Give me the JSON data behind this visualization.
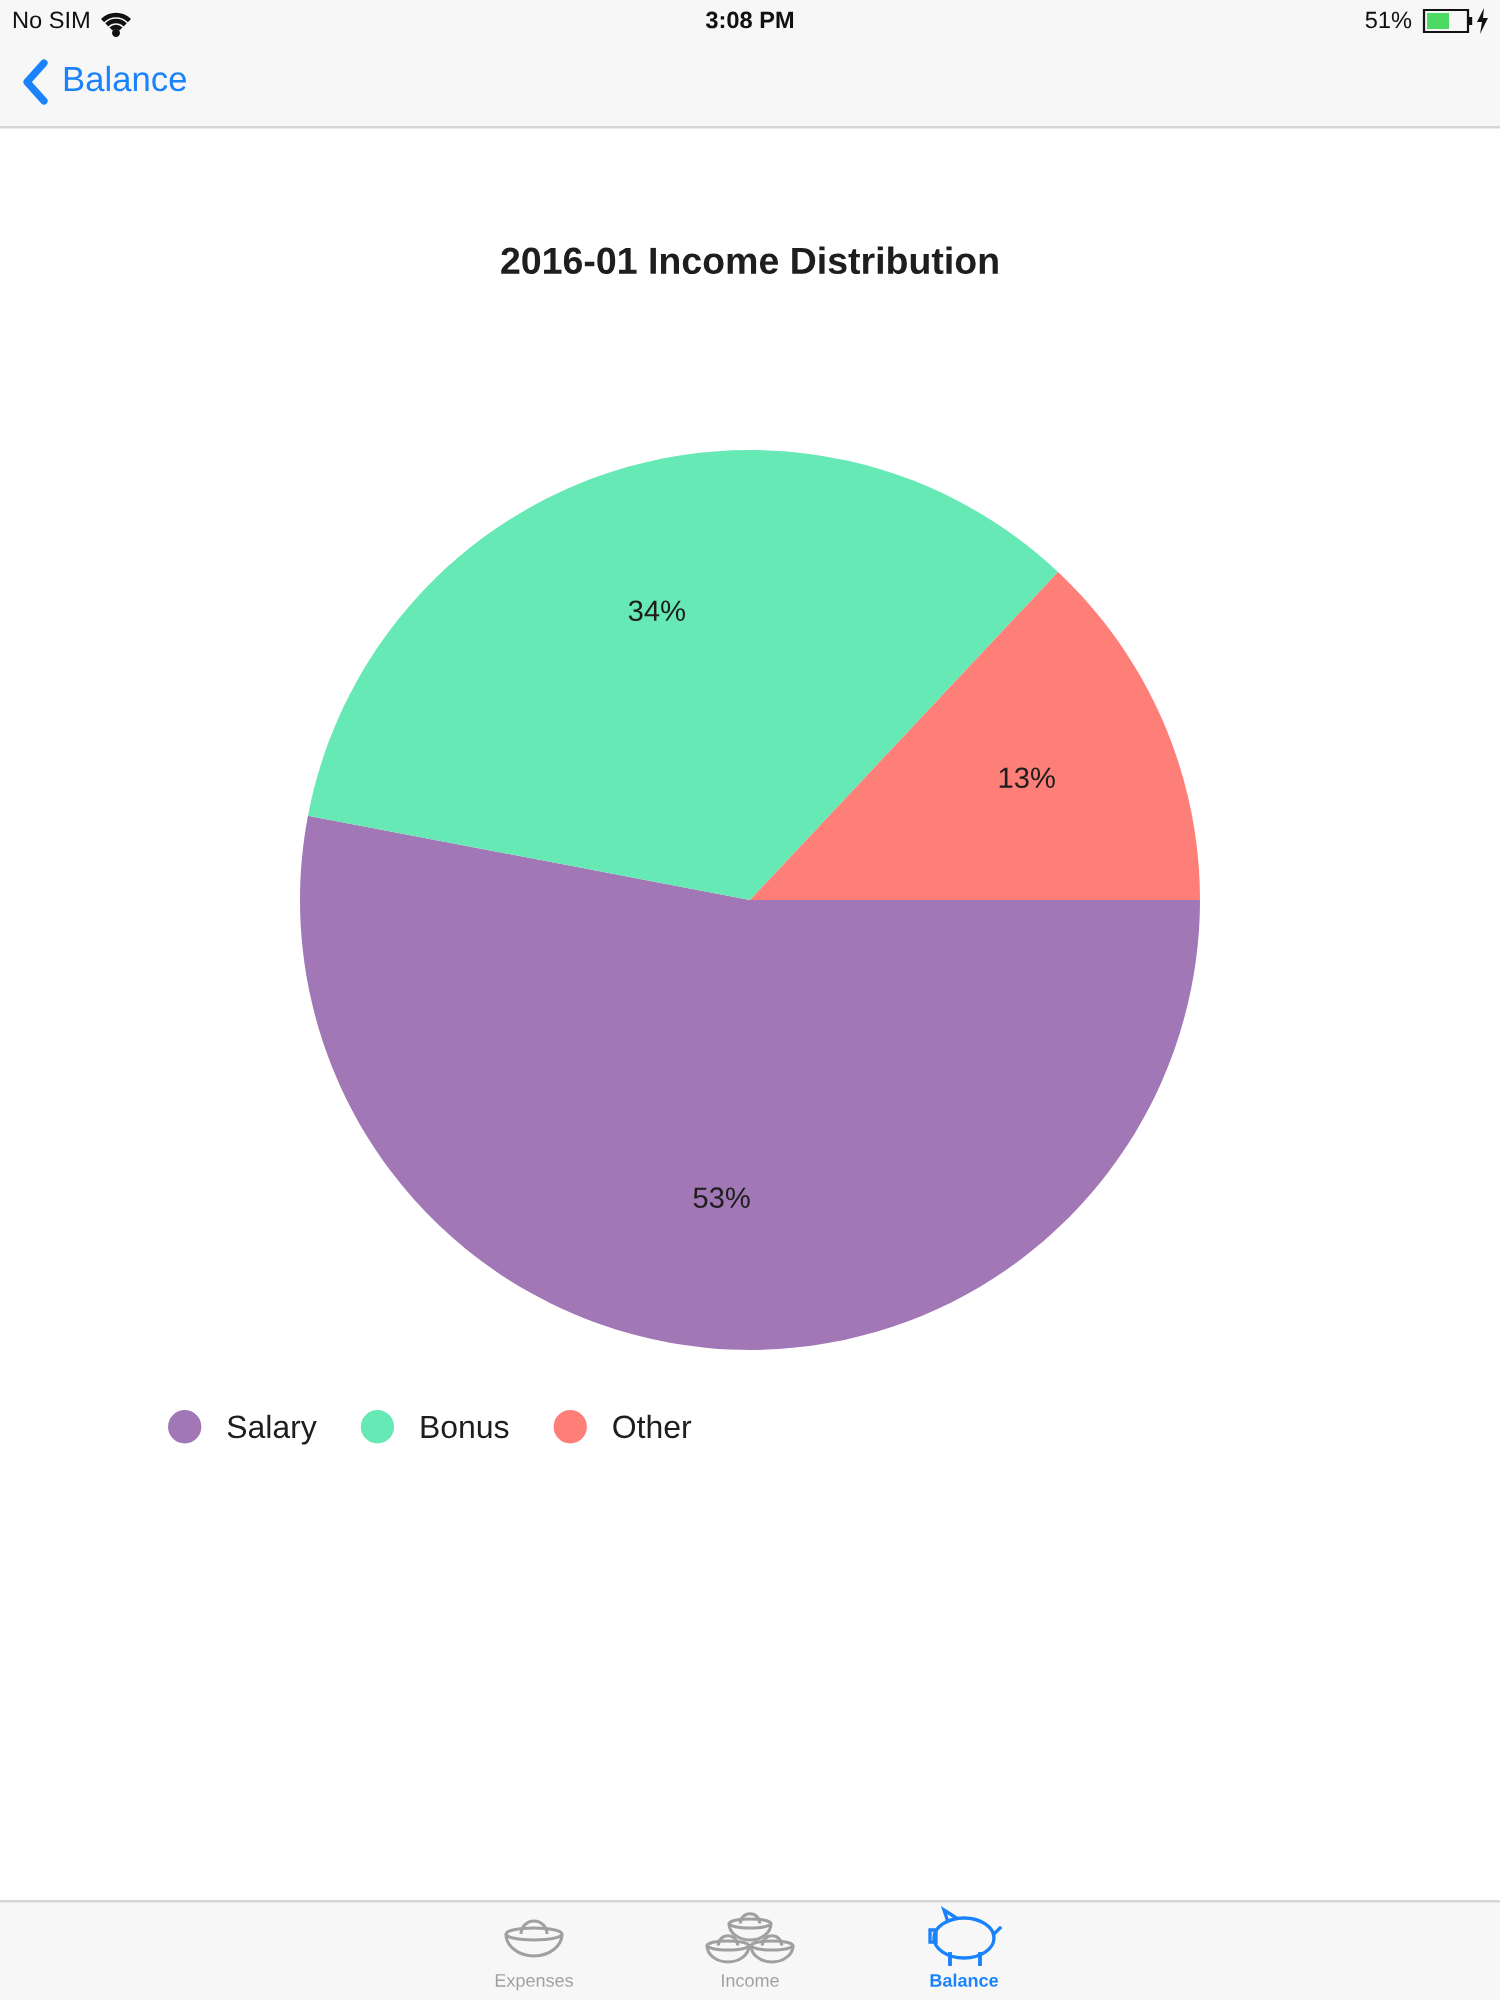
{
  "chart_data": {
    "type": "pie",
    "title": "2016-01 Income Distribution",
    "categories": [
      "Salary",
      "Bonus",
      "Other"
    ],
    "values": [
      53,
      34,
      13
    ],
    "colors": [
      "#a277b5",
      "#66e9b5",
      "#fe7e78"
    ],
    "value_labels": [
      "53%",
      "34%",
      "13%"
    ],
    "legend": "bottom left",
    "annotations": [
      "No SIM",
      "3:08 PM",
      "51%",
      "Balance",
      "Expenses",
      "Income",
      "Balance"
    ]
  }
}
